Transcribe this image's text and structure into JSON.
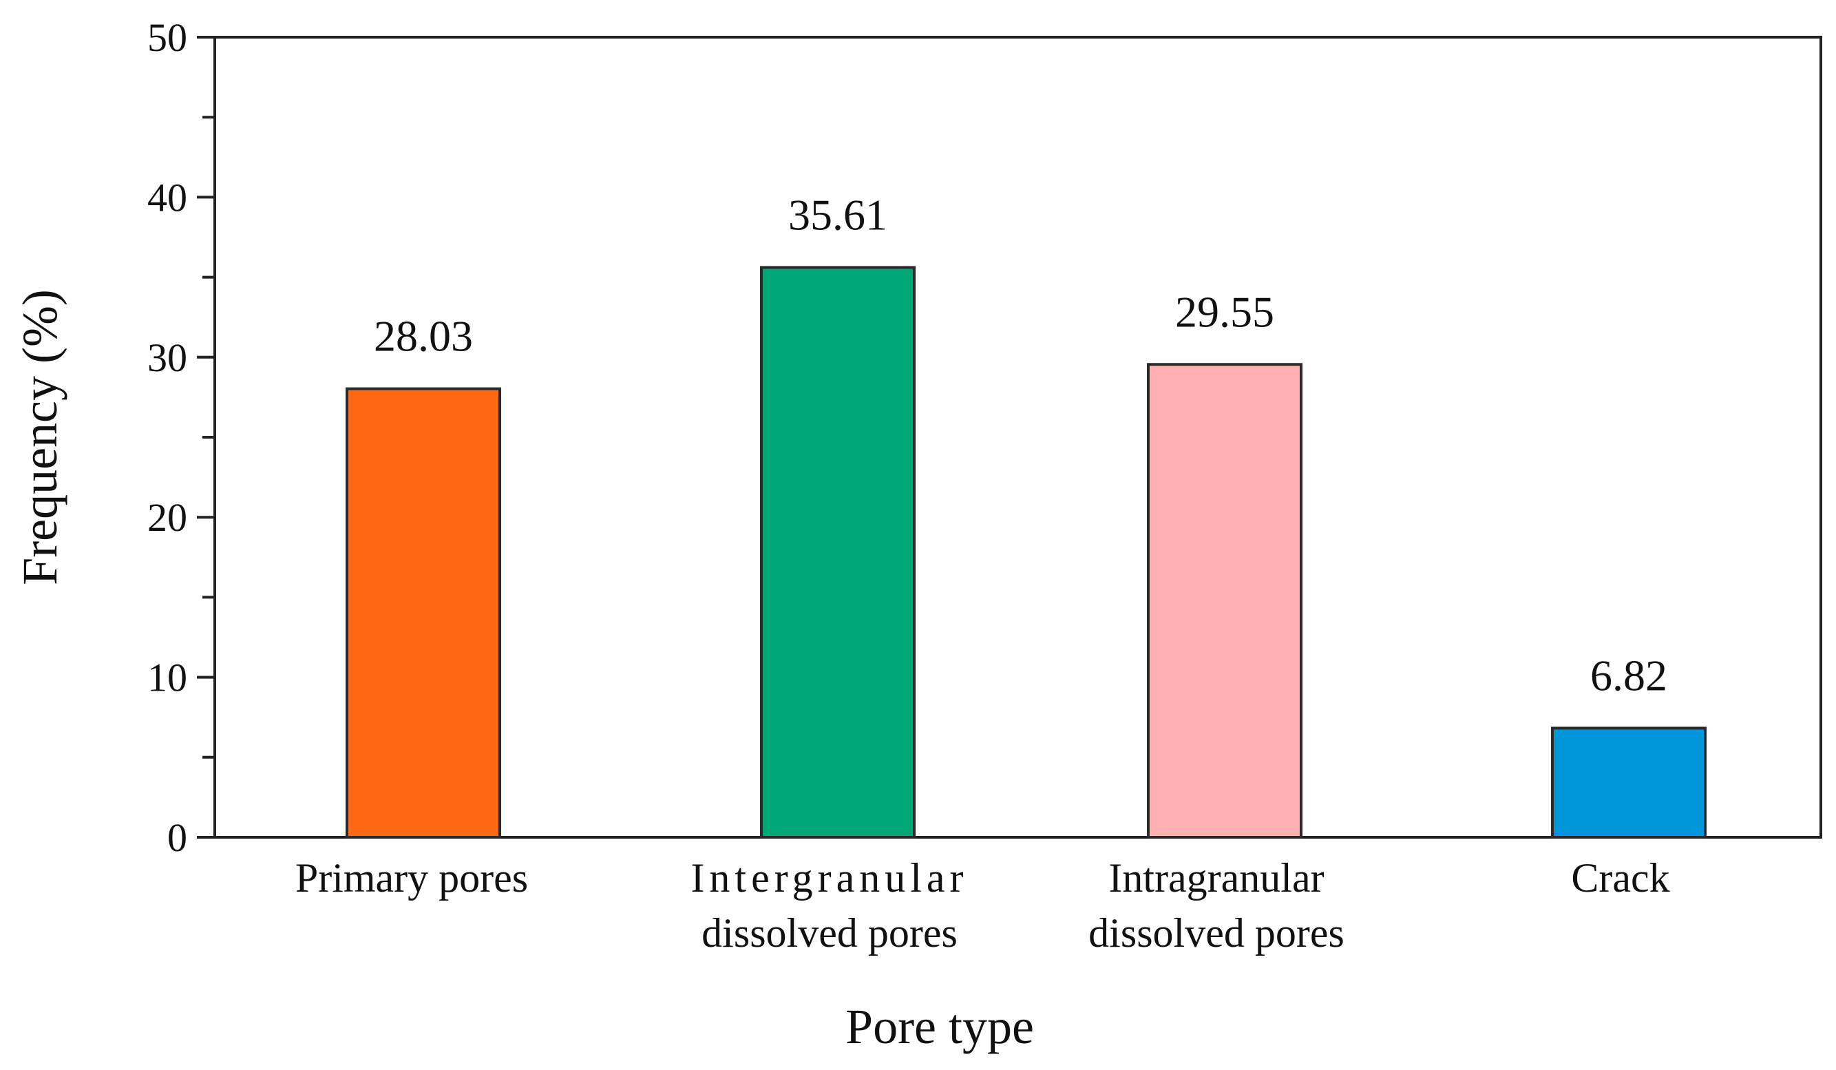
{
  "chart_data": {
    "type": "bar",
    "categories": [
      [
        "Primary pores"
      ],
      [
        "Intergranular",
        "dissolved pores"
      ],
      [
        "Intragranular",
        "dissolved  pores"
      ],
      [
        "Crack"
      ]
    ],
    "values": [
      28.03,
      35.61,
      29.55,
      6.82
    ],
    "value_labels": [
      "28.03",
      "35.61",
      "29.55",
      "6.82"
    ],
    "colors": [
      "#ff6a13",
      "#00a676",
      "#ffb0b0",
      "#0097da"
    ],
    "title": "",
    "xlabel": "Pore type",
    "ylabel": "Frequency (%)",
    "ylim": [
      0,
      50
    ],
    "yticks": [
      0,
      10,
      20,
      30,
      40,
      50
    ],
    "grid": false,
    "legend": "none"
  }
}
